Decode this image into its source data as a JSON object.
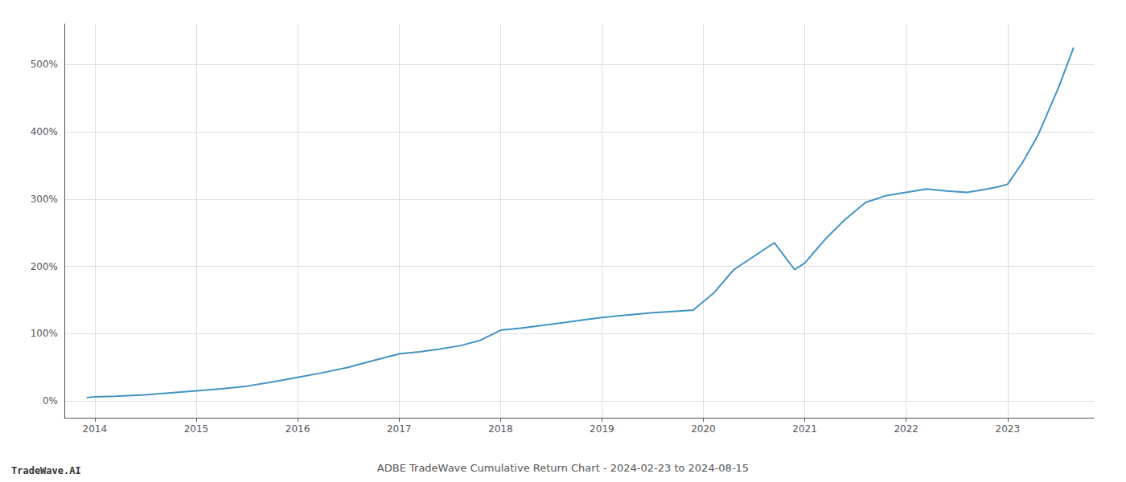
{
  "chart_data": {
    "type": "line",
    "title": "ADBE TradeWave Cumulative Return Chart - 2024-02-23 to 2024-08-15",
    "annotations": [
      "TradeWave.AI"
    ],
    "color": "#4393c3",
    "grid": true,
    "x": [
      2013.92,
      2014.0,
      2014.2,
      2014.5,
      2014.75,
      2015.0,
      2015.25,
      2015.5,
      2015.75,
      2016.0,
      2016.25,
      2016.5,
      2016.75,
      2017.0,
      2017.2,
      2017.4,
      2017.6,
      2017.8,
      2018.0,
      2018.2,
      2018.4,
      2018.6,
      2018.8,
      2019.0,
      2019.2,
      2019.5,
      2019.7,
      2019.9,
      2020.1,
      2020.3,
      2020.5,
      2020.7,
      2020.9,
      2021.0,
      2021.2,
      2021.4,
      2021.6,
      2021.8,
      2022.0,
      2022.2,
      2022.4,
      2022.6,
      2022.8,
      2022.9,
      2023.0,
      2023.15,
      2023.3,
      2023.5,
      2023.65
    ],
    "values": [
      5,
      6,
      7,
      9,
      12,
      15,
      18,
      22,
      28,
      35,
      42,
      50,
      60,
      70,
      73,
      77,
      82,
      90,
      105,
      108,
      112,
      116,
      120,
      124,
      127,
      131,
      133,
      135,
      160,
      195,
      215,
      235,
      195,
      205,
      240,
      270,
      295,
      305,
      310,
      315,
      312,
      310,
      315,
      318,
      322,
      355,
      395,
      465,
      525
    ],
    "xlim": [
      2013.7,
      2023.85
    ],
    "ylim": [
      -25,
      560
    ],
    "xticks": [
      2014,
      2015,
      2016,
      2017,
      2018,
      2019,
      2020,
      2021,
      2022,
      2023
    ],
    "yticks": [
      {
        "value": 0,
        "label": "0%"
      },
      {
        "value": 100,
        "label": "100%"
      },
      {
        "value": 200,
        "label": "200%"
      },
      {
        "value": 300,
        "label": "300%"
      },
      {
        "value": 400,
        "label": "400%"
      },
      {
        "value": 500,
        "label": "500%"
      }
    ]
  }
}
